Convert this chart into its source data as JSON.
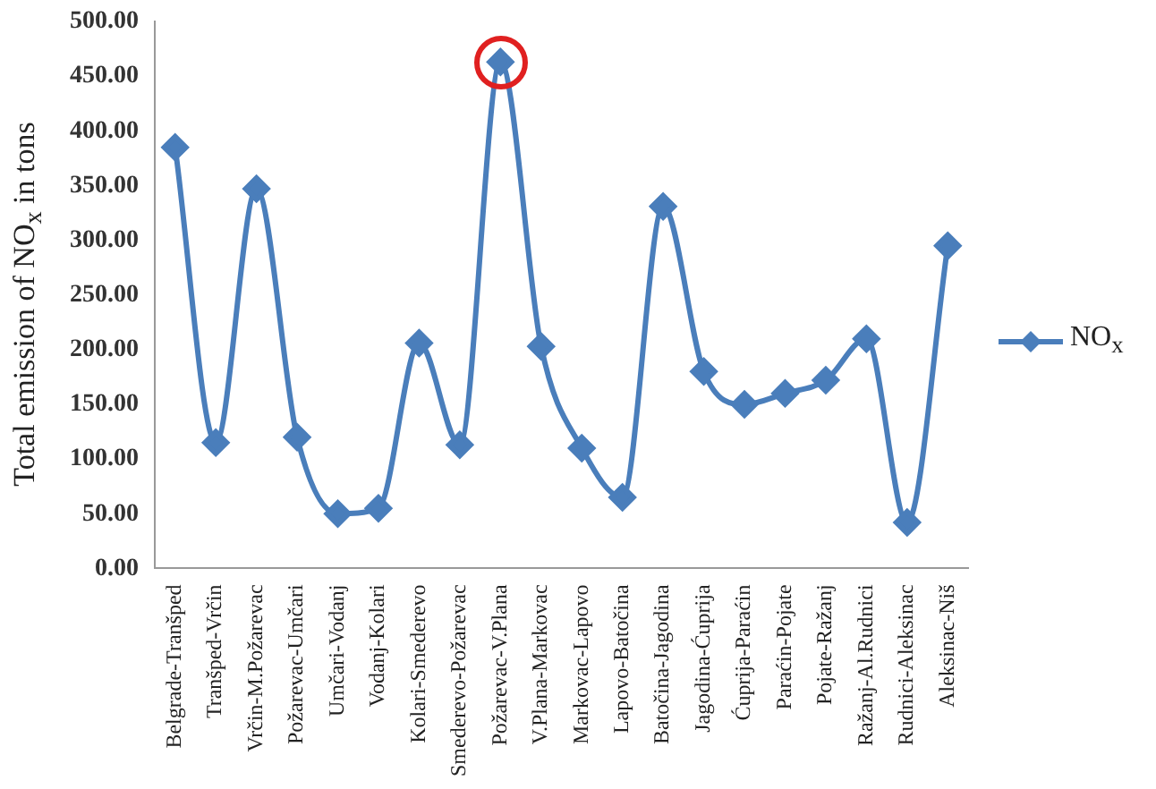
{
  "chart_data": {
    "type": "line",
    "ylabel": "Total emission of NO$_{x}$ in tons",
    "categories": [
      "Belgrade-Tranšped",
      "Tranšped-Vrčin",
      "Vrčin-M.Požarevac",
      "Požarevac-Umčari",
      "Umčari-Vodanj",
      "Vodanj-Kolari",
      "Kolari-Smederevo",
      "Smederevo-Požarevac",
      "Požarevac-V.Plana",
      "V.Plana-Markovac",
      "Markovac-Lapovo",
      "Lapovo-Batočina",
      "Batočina-Jagodina",
      "Jagodina-Ćuprija",
      "Ćuprija-Paraćin",
      "Paraćin-Pojate",
      "Pojate-Ražanj",
      "Ražanj-Al.Rudnici",
      "Rudnici-Aleksinac",
      "Aleksinac-Niš"
    ],
    "series": [
      {
        "name": "NO$_{x}$",
        "color": "#4a7ebb",
        "values": [
          385,
          115,
          347,
          120,
          50,
          55,
          206,
          113,
          463,
          203,
          110,
          65,
          331,
          180,
          150,
          160,
          172,
          210,
          42,
          295
        ]
      }
    ],
    "ylim": [
      0,
      500
    ],
    "yticks": [
      {
        "value": 0,
        "label": "0.00"
      },
      {
        "value": 50,
        "label": "50.00"
      },
      {
        "value": 100,
        "label": "100.00"
      },
      {
        "value": 150,
        "label": "150.00"
      },
      {
        "value": 200,
        "label": "200.00"
      },
      {
        "value": 250,
        "label": "250.00"
      },
      {
        "value": 300,
        "label": "300.00"
      },
      {
        "value": 350,
        "label": "350.00"
      },
      {
        "value": 400,
        "label": "400.00"
      },
      {
        "value": 450,
        "label": "450.00"
      },
      {
        "value": 500,
        "label": "500.00"
      }
    ],
    "grid": false,
    "legend": "right",
    "marker": "diamond",
    "line_style": "solid"
  }
}
